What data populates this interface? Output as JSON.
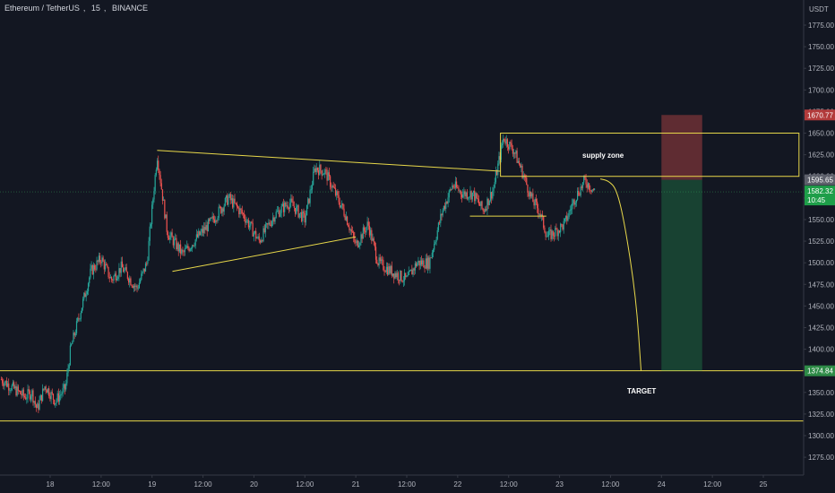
{
  "header": {
    "symbol": "Ethereum / TetherUS",
    "interval": "15",
    "exchange": "BINANCE"
  },
  "axis": {
    "currency": "USDT"
  },
  "colors": {
    "background": "#131722",
    "bull": "#26a69a",
    "bear": "#ef5350",
    "drawing": "#e8d84a",
    "text": "#b2b5be"
  },
  "annotations": {
    "supply_zone": "supply zone",
    "target": "TARGET"
  },
  "price_tags": {
    "stop": "1670.77",
    "entry": "1595.65",
    "current": "1582.32",
    "countdown": "10:45",
    "target": "1374.84"
  },
  "chart_data": {
    "type": "candlestick",
    "title": "Ethereum / TetherUS, 15, BINANCE",
    "ylabel": "USDT",
    "ylim": [
      1255,
      1800
    ],
    "y_ticks": [
      1275,
      1300,
      1325,
      1350,
      1375,
      1400,
      1425,
      1450,
      1475,
      1500,
      1525,
      1550,
      1575,
      1600,
      1625,
      1650,
      1675,
      1700,
      1725,
      1750,
      1775
    ],
    "x_ticks": [
      "18",
      "12:00",
      "19",
      "12:00",
      "20",
      "12:00",
      "21",
      "12:00",
      "22",
      "12:00",
      "23",
      "12:00",
      "24",
      "12:00",
      "25"
    ],
    "x_tick_days": [
      18,
      18.5,
      19,
      19.5,
      20,
      20.5,
      21,
      21.5,
      22,
      22.5,
      23,
      23.5,
      24,
      24.5,
      25
    ],
    "x_range": [
      17.52,
      25.35
    ],
    "grid": false,
    "price_path": [
      {
        "d": 17.52,
        "p": 1365
      },
      {
        "d": 17.75,
        "p": 1345
      },
      {
        "d": 17.82,
        "p": 1350
      },
      {
        "d": 17.87,
        "p": 1330
      },
      {
        "d": 17.95,
        "p": 1358
      },
      {
        "d": 18.05,
        "p": 1340
      },
      {
        "d": 18.15,
        "p": 1355
      },
      {
        "d": 18.2,
        "p": 1400
      },
      {
        "d": 18.3,
        "p": 1445
      },
      {
        "d": 18.4,
        "p": 1490
      },
      {
        "d": 18.5,
        "p": 1505
      },
      {
        "d": 18.6,
        "p": 1480
      },
      {
        "d": 18.7,
        "p": 1495
      },
      {
        "d": 18.85,
        "p": 1470
      },
      {
        "d": 18.95,
        "p": 1500
      },
      {
        "d": 19.05,
        "p": 1625
      },
      {
        "d": 19.15,
        "p": 1535
      },
      {
        "d": 19.3,
        "p": 1510
      },
      {
        "d": 19.45,
        "p": 1530
      },
      {
        "d": 19.6,
        "p": 1550
      },
      {
        "d": 19.75,
        "p": 1575
      },
      {
        "d": 19.9,
        "p": 1555
      },
      {
        "d": 20.05,
        "p": 1525
      },
      {
        "d": 20.2,
        "p": 1555
      },
      {
        "d": 20.35,
        "p": 1570
      },
      {
        "d": 20.5,
        "p": 1550
      },
      {
        "d": 20.6,
        "p": 1610
      },
      {
        "d": 20.7,
        "p": 1605
      },
      {
        "d": 20.8,
        "p": 1580
      },
      {
        "d": 20.9,
        "p": 1555
      },
      {
        "d": 21.0,
        "p": 1520
      },
      {
        "d": 21.12,
        "p": 1545
      },
      {
        "d": 21.22,
        "p": 1500
      },
      {
        "d": 21.35,
        "p": 1490
      },
      {
        "d": 21.5,
        "p": 1480
      },
      {
        "d": 21.6,
        "p": 1500
      },
      {
        "d": 21.72,
        "p": 1500
      },
      {
        "d": 21.85,
        "p": 1560
      },
      {
        "d": 21.95,
        "p": 1590
      },
      {
        "d": 22.05,
        "p": 1580
      },
      {
        "d": 22.15,
        "p": 1580
      },
      {
        "d": 22.25,
        "p": 1560
      },
      {
        "d": 22.35,
        "p": 1585
      },
      {
        "d": 22.45,
        "p": 1645
      },
      {
        "d": 22.55,
        "p": 1630
      },
      {
        "d": 22.65,
        "p": 1600
      },
      {
        "d": 22.72,
        "p": 1575
      },
      {
        "d": 22.8,
        "p": 1560
      },
      {
        "d": 22.88,
        "p": 1530
      },
      {
        "d": 22.95,
        "p": 1535
      },
      {
        "d": 23.05,
        "p": 1545
      },
      {
        "d": 23.15,
        "p": 1575
      },
      {
        "d": 23.25,
        "p": 1595
      },
      {
        "d": 23.35,
        "p": 1582
      }
    ],
    "drawings": {
      "triangle_upper": [
        [
          19.05,
          1630
        ],
        [
          22.42,
          1606
        ]
      ],
      "triangle_lower": [
        [
          19.2,
          1490
        ],
        [
          21.0,
          1530
        ]
      ],
      "supply_zone": {
        "d0": 22.42,
        "d1": 25.35,
        "top": 1650,
        "bottom": 1600
      },
      "small_support": [
        [
          22.12,
          1554
        ],
        [
          22.87,
          1554
        ]
      ],
      "level_target": 1375,
      "level_low": 1317,
      "position": {
        "d0": 24.0,
        "d1": 24.4,
        "stop": 1671,
        "entry": 1596,
        "target": 1375
      },
      "projection": [
        [
          23.4,
          1597
        ],
        [
          23.48,
          1595
        ],
        [
          23.56,
          1585
        ],
        [
          23.64,
          1545
        ],
        [
          23.75,
          1460
        ],
        [
          23.8,
          1375
        ]
      ]
    }
  }
}
